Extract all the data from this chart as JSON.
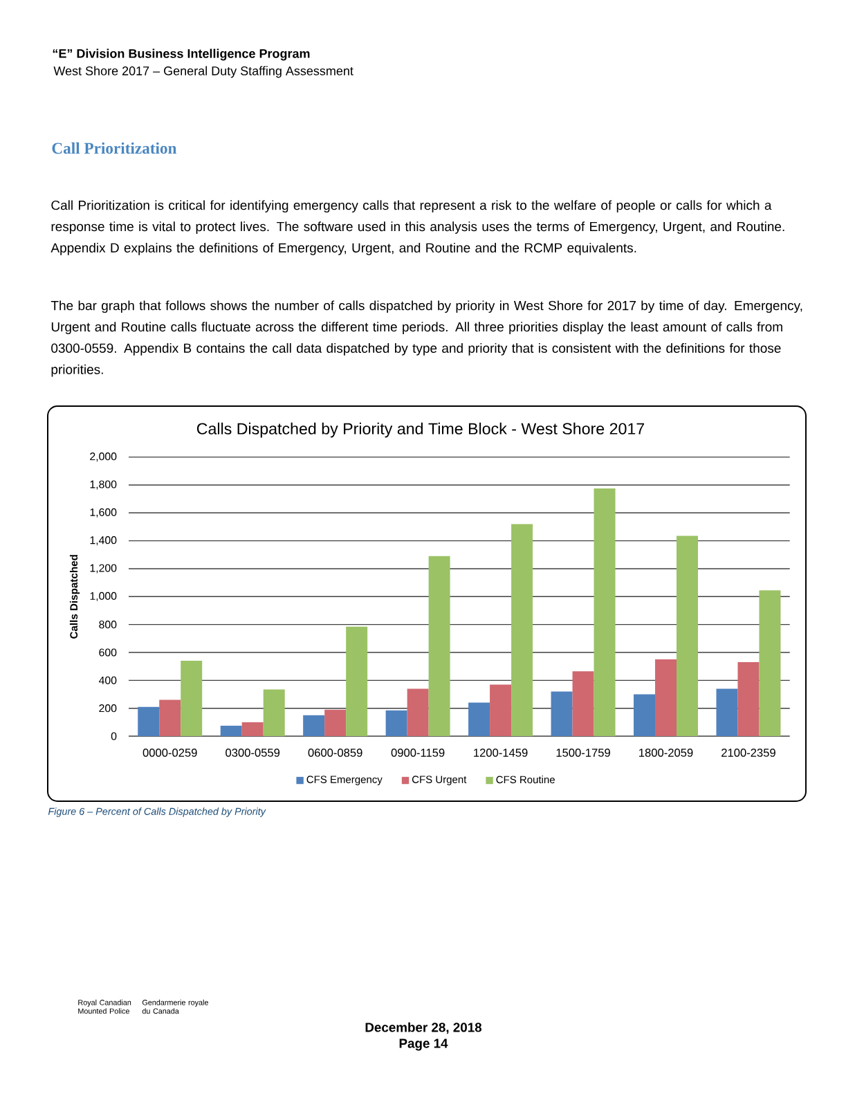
{
  "chart_data": {
    "type": "bar",
    "title": "Calls Dispatched by Priority and Time Block - West Shore 2017",
    "ylabel": "Calls Dispatched",
    "categories": [
      "0000-0259",
      "0300-0559",
      "0600-0859",
      "0900-1159",
      "1200-1459",
      "1500-1759",
      "1800-2059",
      "2100-2359"
    ],
    "series": [
      {
        "name": "CFS Emergency",
        "color": "#4f81bd",
        "values": [
          210,
          75,
          150,
          185,
          240,
          320,
          300,
          340
        ]
      },
      {
        "name": "CFS Urgent",
        "color": "#d0686f",
        "values": [
          260,
          100,
          190,
          340,
          370,
          465,
          550,
          530
        ]
      },
      {
        "name": "CFS Routine",
        "color": "#9bc265",
        "values": [
          540,
          335,
          785,
          1290,
          1520,
          1775,
          1435,
          1045
        ]
      }
    ],
    "ylim": [
      0,
      2000
    ],
    "yticks": [
      0,
      200,
      400,
      600,
      800,
      {
        "value": 1000,
        "label": "1,000"
      },
      {
        "value": 1200,
        "label": "1,200"
      },
      {
        "value": 1400,
        "label": "1,400"
      },
      {
        "value": 1600,
        "label": "1,600"
      },
      {
        "value": 1800,
        "label": "1,800"
      },
      {
        "value": 2000,
        "label": "2,000"
      }
    ],
    "grid": "y",
    "legend": "bottom",
    "annotations": [
      "“E” Division Business Intelligence Program",
      "West Shore 2017 – General Duty Staffing Assessment",
      "Call Prioritization",
      "Call Prioritization is critical for identifying emergency calls that represent a risk to the welfare of people or calls for which a response time is vital to protect lives. The software used in this analysis uses the terms of Emergency, Urgent, and Routine. Appendix D explains the definitions of Emergency, Urgent, and Routine and the RCMP equivalents.",
      "The bar graph that follows shows the number of calls dispatched by priority in West Shore for 2017 by time of day. Emergency, Urgent and Routine calls fluctuate across the different time periods. All three priorities display the least amount of calls from 0300-0559. Appendix B contains the call data dispatched by type and priority that is consistent with the definitions for those priorities.",
      "Figure 6 – Percent of Calls Dispatched by Priority",
      "Royal Canadian Mounted Police",
      "Gendarmerie royale du Canada",
      "December 28, 2018",
      "Page 14"
    ]
  }
}
